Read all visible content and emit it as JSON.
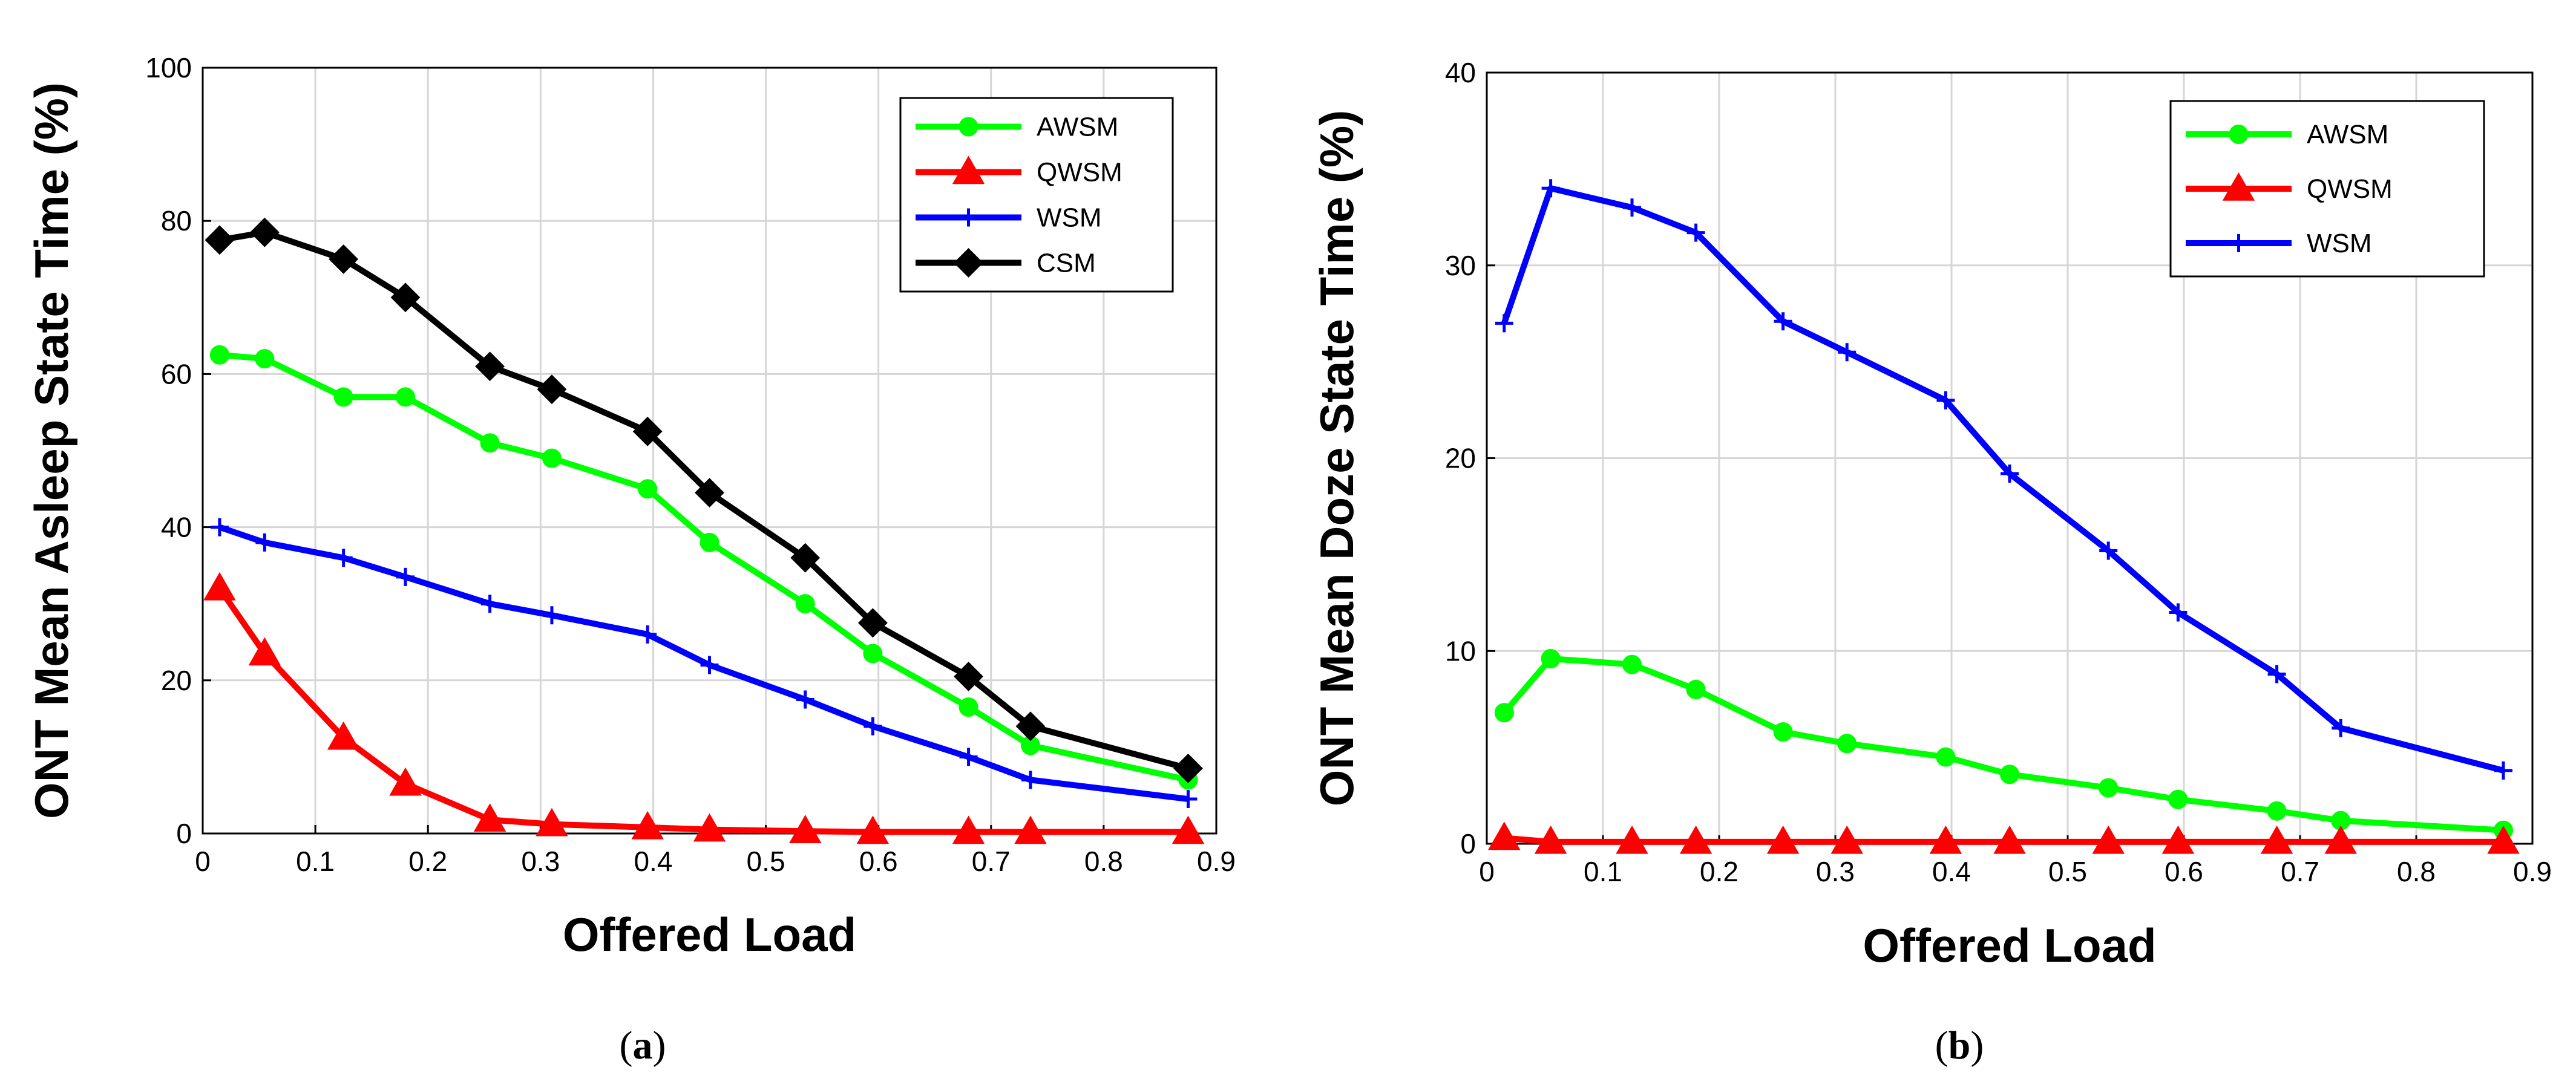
{
  "chart_data": [
    {
      "type": "line",
      "panel_label": "a",
      "title": "",
      "xlabel": "Offered Load",
      "ylabel": "ONT Mean Asleep State Time (%)",
      "xlim": [
        0,
        0.9
      ],
      "ylim": [
        0,
        100
      ],
      "xticks": [
        0,
        0.1,
        0.2,
        0.3,
        0.4,
        0.5,
        0.6,
        0.7,
        0.8,
        0.9
      ],
      "xtick_labels": [
        "0",
        "0.1",
        "0.2",
        "0.3",
        "0.4",
        "0.5",
        "0.6",
        "0.7",
        "0.8",
        "0.9"
      ],
      "yticks": [
        0,
        20,
        40,
        60,
        80,
        100
      ],
      "ytick_labels": [
        "0",
        "20",
        "40",
        "60",
        "80",
        "100"
      ],
      "grid": true,
      "legend_position": "top-right",
      "x": [
        0.015,
        0.055,
        0.125,
        0.18,
        0.255,
        0.31,
        0.395,
        0.45,
        0.535,
        0.595,
        0.68,
        0.735,
        0.875
      ],
      "series": [
        {
          "name": "AWSM",
          "color": "#00ff00",
          "marker": "circle",
          "values": [
            62.5,
            62,
            57,
            57,
            51,
            49,
            45,
            38,
            30,
            23.5,
            16.5,
            11.5,
            7
          ]
        },
        {
          "name": "QWSM",
          "color": "#ff0000",
          "marker": "triangle",
          "values": [
            32,
            23.5,
            12.5,
            6.5,
            1.8,
            1.2,
            0.8,
            0.5,
            0.3,
            0.2,
            0.2,
            0.2,
            0.2
          ]
        },
        {
          "name": "WSM",
          "color": "#0000ff",
          "marker": "plus",
          "values": [
            40,
            38,
            36,
            33.5,
            30,
            28.5,
            26,
            22,
            17.5,
            14,
            10,
            7,
            4.5
          ]
        },
        {
          "name": "CSM",
          "color": "#000000",
          "marker": "diamond",
          "values": [
            77.5,
            78.5,
            75,
            70,
            61,
            58,
            52.5,
            44.5,
            36,
            27.5,
            20.5,
            14,
            8.5
          ]
        }
      ]
    },
    {
      "type": "line",
      "panel_label": "b",
      "title": "",
      "xlabel": "Offered Load",
      "ylabel": "ONT Mean Doze State Time (%)",
      "xlim": [
        0,
        0.9
      ],
      "ylim": [
        0,
        40
      ],
      "xticks": [
        0,
        0.1,
        0.2,
        0.3,
        0.4,
        0.5,
        0.6,
        0.7,
        0.8,
        0.9
      ],
      "xtick_labels": [
        "0",
        "0.1",
        "0.2",
        "0.3",
        "0.4",
        "0.5",
        "0.6",
        "0.7",
        "0.8",
        "0.9"
      ],
      "yticks": [
        0,
        10,
        20,
        30,
        40
      ],
      "ytick_labels": [
        "0",
        "10",
        "20",
        "30",
        "40"
      ],
      "grid": true,
      "legend_position": "top-right",
      "x": [
        0.015,
        0.055,
        0.125,
        0.18,
        0.255,
        0.31,
        0.395,
        0.45,
        0.535,
        0.595,
        0.68,
        0.735,
        0.875
      ],
      "series": [
        {
          "name": "AWSM",
          "color": "#00ff00",
          "marker": "circle",
          "values": [
            6.8,
            9.6,
            9.3,
            8.0,
            5.8,
            5.2,
            4.5,
            3.6,
            2.9,
            2.3,
            1.7,
            1.2,
            0.7
          ]
        },
        {
          "name": "QWSM",
          "color": "#ff0000",
          "marker": "triangle",
          "values": [
            0.3,
            0.1,
            0.1,
            0.1,
            0.1,
            0.1,
            0.1,
            0.1,
            0.1,
            0.1,
            0.1,
            0.1,
            0.1
          ]
        },
        {
          "name": "WSM",
          "color": "#0000ff",
          "marker": "plus",
          "values": [
            27,
            34,
            33,
            31.7,
            27.1,
            25.5,
            23,
            19.2,
            15.2,
            12,
            8.8,
            6,
            3.8
          ]
        }
      ]
    }
  ],
  "captions": [
    {
      "open": "(",
      "label": "a",
      "close": ")"
    },
    {
      "open": "(",
      "label": "b",
      "close": ")"
    }
  ]
}
